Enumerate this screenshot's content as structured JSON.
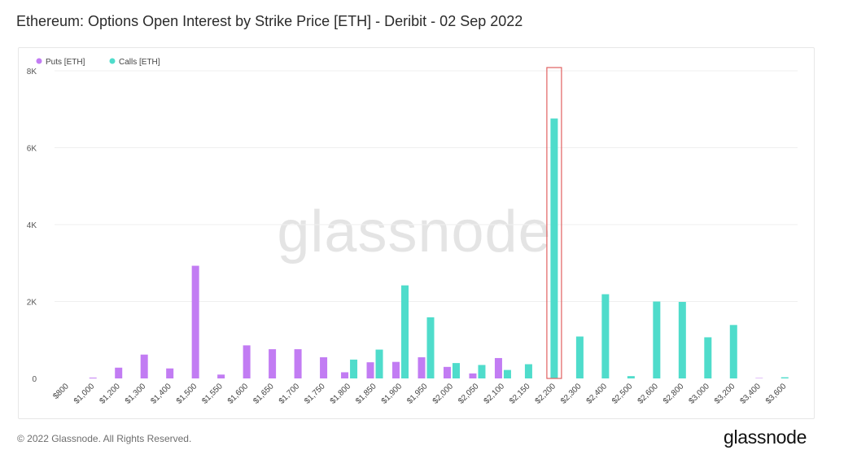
{
  "page": {
    "title": "Ethereum: Options Open Interest by Strike Price [ETH] - Deribit - 02 Sep 2022",
    "copyright": "© 2022 Glassnode. All Rights Reserved.",
    "brand": "glassnode",
    "watermark": "glassnode"
  },
  "colors": {
    "puts": "#c27cf3",
    "calls": "#4fdccb",
    "grid": "#efefef",
    "highlight": "#e06060"
  },
  "chart_data": {
    "type": "bar",
    "title": "Ethereum: Options Open Interest by Strike Price [ETH] - Deribit - 02 Sep 2022",
    "xlabel": "",
    "ylabel": "",
    "ylim": [
      0,
      8000
    ],
    "yticks": [
      0,
      2000,
      4000,
      6000,
      8000
    ],
    "ytick_labels": [
      "0",
      "2K",
      "4K",
      "6K",
      "8K"
    ],
    "grid": true,
    "legend_position": "top-left",
    "categories": [
      "$800",
      "$1,000",
      "$1,200",
      "$1,300",
      "$1,400",
      "$1,500",
      "$1,550",
      "$1,600",
      "$1,650",
      "$1,700",
      "$1,750",
      "$1,800",
      "$1,850",
      "$1,900",
      "$1,950",
      "$2,000",
      "$2,050",
      "$2,100",
      "$2,150",
      "$2,200",
      "$2,300",
      "$2,400",
      "$2,500",
      "$2,600",
      "$2,800",
      "$3,000",
      "$3,200",
      "$3,400",
      "$3,600"
    ],
    "series": [
      {
        "name": "Puts [ETH]",
        "values": [
          0,
          20,
          280,
          620,
          260,
          2930,
          100,
          860,
          760,
          760,
          550,
          160,
          420,
          430,
          550,
          300,
          130,
          530,
          0,
          0,
          0,
          0,
          0,
          0,
          0,
          0,
          0,
          10,
          0
        ]
      },
      {
        "name": "Calls [ETH]",
        "values": [
          0,
          0,
          0,
          0,
          0,
          0,
          0,
          0,
          0,
          0,
          0,
          490,
          750,
          2420,
          1590,
          400,
          350,
          220,
          370,
          6760,
          1090,
          2190,
          60,
          2000,
          1990,
          1070,
          1390,
          0,
          30
        ]
      }
    ],
    "highlight_category": "$2,200"
  }
}
